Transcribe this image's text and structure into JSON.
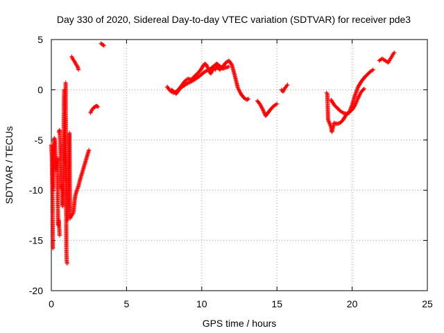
{
  "chart_data": {
    "type": "scatter",
    "title": "Day 330 of 2020, Sidereal Day-to-day VTEC variation (SDTVAR) for receiver pde3",
    "xlabel": "GPS time / hours",
    "ylabel": "SDTVAR / TECUs",
    "xlim": [
      0,
      25
    ],
    "ylim": [
      -20,
      5
    ],
    "xticks": [
      0,
      5,
      10,
      15,
      20,
      25
    ],
    "yticks": [
      -20,
      -15,
      -10,
      -5,
      0,
      5
    ],
    "xtick_labels": [
      "0",
      "5",
      "10",
      "15",
      "20",
      "25"
    ],
    "ytick_labels": [
      "-20",
      "-15",
      "-10",
      "-5",
      "0",
      "5"
    ],
    "grid": true,
    "legend": "none",
    "marker": "+",
    "color": "#ff0000",
    "segments": [
      [
        [
          0.0,
          -5.5
        ],
        [
          0.03,
          -6.5
        ],
        [
          0.05,
          -8.3
        ],
        [
          0.08,
          -10.6
        ],
        [
          0.1,
          -15.8
        ]
      ],
      [
        [
          0.12,
          -9.8
        ],
        [
          0.15,
          -7.2
        ],
        [
          0.2,
          -4.8
        ],
        [
          0.25,
          -5.2
        ],
        [
          0.3,
          -8.0
        ],
        [
          0.35,
          -7.0
        ],
        [
          0.4,
          -6.8
        ],
        [
          0.45,
          -13.5
        ],
        [
          0.5,
          -13.0
        ],
        [
          0.55,
          -14.5
        ]
      ],
      [
        [
          0.5,
          -4.2
        ],
        [
          0.55,
          -4.0
        ],
        [
          0.6,
          -5.5
        ],
        [
          0.65,
          -9.8
        ],
        [
          0.7,
          -9.5
        ],
        [
          0.75,
          -11.6
        ],
        [
          0.8,
          -10.0
        ],
        [
          0.85,
          0.0
        ]
      ],
      [
        [
          0.95,
          0.7
        ],
        [
          1.0,
          -15.5
        ],
        [
          1.02,
          -17.0
        ],
        [
          1.05,
          -17.3
        ]
      ],
      [
        [
          1.05,
          -13.0
        ],
        [
          1.1,
          -12.6
        ],
        [
          1.2,
          -4.3
        ],
        [
          1.25,
          -12.8
        ],
        [
          1.35,
          -12.5
        ],
        [
          1.45,
          -12.3
        ],
        [
          1.5,
          -11.8
        ],
        [
          1.55,
          -11.0
        ],
        [
          1.6,
          -10.5
        ],
        [
          1.7,
          -10.0
        ],
        [
          1.8,
          -9.6
        ],
        [
          1.9,
          -9.0
        ],
        [
          2.0,
          -8.5
        ],
        [
          2.1,
          -8.0
        ],
        [
          2.2,
          -7.5
        ],
        [
          2.3,
          -7.0
        ],
        [
          2.4,
          -6.5
        ],
        [
          2.5,
          -6.0
        ]
      ],
      [
        [
          1.35,
          3.3
        ],
        [
          1.45,
          3.0
        ],
        [
          1.55,
          2.8
        ],
        [
          1.65,
          2.5
        ],
        [
          1.75,
          2.3
        ],
        [
          1.8,
          2.0
        ]
      ],
      [
        [
          2.6,
          -2.3
        ],
        [
          2.7,
          -2.0
        ],
        [
          2.8,
          -1.8
        ],
        [
          2.9,
          -1.7
        ],
        [
          3.0,
          -1.6
        ],
        [
          3.1,
          -1.7
        ]
      ],
      [
        [
          3.3,
          4.6
        ],
        [
          3.4,
          4.5
        ],
        [
          3.5,
          4.4
        ]
      ],
      [
        [
          7.7,
          0.3
        ],
        [
          7.9,
          -0.1
        ],
        [
          8.1,
          -0.3
        ],
        [
          8.3,
          -0.2
        ],
        [
          8.5,
          0.1
        ],
        [
          8.7,
          0.5
        ],
        [
          8.9,
          0.9
        ],
        [
          9.1,
          1.1
        ],
        [
          9.3,
          1.0
        ],
        [
          9.5,
          1.3
        ],
        [
          9.7,
          1.6
        ],
        [
          9.9,
          1.9
        ],
        [
          10.1,
          2.4
        ],
        [
          10.2,
          2.6
        ],
        [
          10.3,
          2.5
        ],
        [
          10.4,
          2.2
        ],
        [
          10.5,
          1.8
        ],
        [
          10.6,
          1.6
        ],
        [
          10.7,
          1.9
        ],
        [
          10.8,
          2.2
        ],
        [
          10.9,
          2.0
        ],
        [
          11.0,
          2.3
        ],
        [
          11.2,
          2.0
        ],
        [
          11.4,
          2.3
        ],
        [
          11.6,
          2.7
        ],
        [
          11.8,
          2.9
        ],
        [
          12.0,
          2.5
        ],
        [
          12.2,
          1.4
        ],
        [
          12.4,
          0.2
        ],
        [
          12.6,
          -0.4
        ],
        [
          12.8,
          -0.8
        ],
        [
          13.0,
          -1.0
        ],
        [
          13.1,
          -0.9
        ]
      ],
      [
        [
          8.0,
          0.0
        ],
        [
          8.3,
          -0.4
        ],
        [
          8.6,
          0.2
        ],
        [
          9.0,
          0.6
        ],
        [
          9.4,
          0.9
        ],
        [
          9.8,
          1.3
        ],
        [
          10.2,
          1.8
        ],
        [
          10.6,
          2.1
        ],
        [
          11.0,
          2.6
        ],
        [
          11.4,
          2.1
        ],
        [
          11.8,
          2.3
        ]
      ],
      [
        [
          13.7,
          -1.1
        ],
        [
          13.9,
          -1.5
        ],
        [
          14.1,
          -2.1
        ],
        [
          14.25,
          -2.6
        ],
        [
          14.4,
          -2.3
        ],
        [
          14.6,
          -1.9
        ],
        [
          14.8,
          -1.6
        ],
        [
          15.0,
          -1.4
        ]
      ],
      [
        [
          15.3,
          0.0
        ],
        [
          15.4,
          -0.2
        ],
        [
          15.5,
          0.1
        ],
        [
          15.6,
          0.3
        ],
        [
          15.7,
          0.5
        ]
      ],
      [
        [
          18.3,
          -0.3
        ],
        [
          18.35,
          -0.4
        ],
        [
          18.4,
          -3.0
        ],
        [
          18.6,
          -3.7
        ],
        [
          18.65,
          -4.2
        ],
        [
          18.8,
          -3.3
        ],
        [
          19.0,
          -3.4
        ],
        [
          19.2,
          -3.3
        ],
        [
          19.4,
          -3.0
        ],
        [
          19.6,
          -2.5
        ],
        [
          19.8,
          -2.2
        ],
        [
          20.0,
          -2.0
        ],
        [
          20.2,
          -1.5
        ],
        [
          20.4,
          -0.8
        ],
        [
          20.6,
          -0.2
        ],
        [
          20.8,
          0.1
        ]
      ],
      [
        [
          18.6,
          -1.0
        ],
        [
          18.8,
          -1.5
        ],
        [
          19.0,
          -1.8
        ],
        [
          19.2,
          -2.1
        ],
        [
          19.4,
          -2.3
        ],
        [
          19.6,
          -2.4
        ],
        [
          19.8,
          -2.3
        ],
        [
          20.0,
          -1.5
        ],
        [
          20.2,
          -0.5
        ],
        [
          20.4,
          0.3
        ],
        [
          20.6,
          0.8
        ],
        [
          20.8,
          1.2
        ],
        [
          21.0,
          1.5
        ],
        [
          21.2,
          1.8
        ],
        [
          21.4,
          2.0
        ]
      ],
      [
        [
          21.8,
          2.9
        ],
        [
          22.0,
          3.1
        ],
        [
          22.2,
          2.9
        ],
        [
          22.4,
          2.7
        ],
        [
          22.5,
          3.0
        ],
        [
          22.6,
          3.2
        ],
        [
          22.7,
          3.5
        ],
        [
          22.8,
          3.7
        ]
      ]
    ]
  }
}
